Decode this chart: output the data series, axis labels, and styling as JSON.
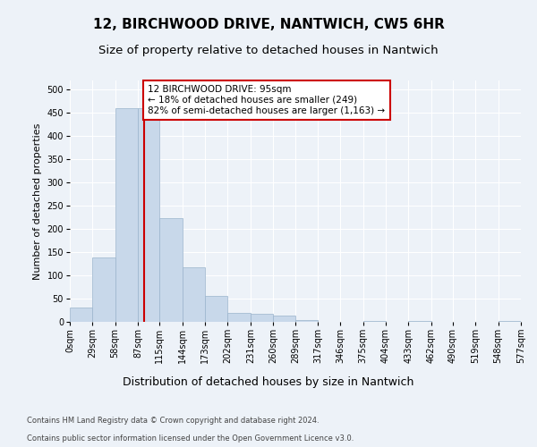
{
  "title": "12, BIRCHWOOD DRIVE, NANTWICH, CW5 6HR",
  "subtitle": "Size of property relative to detached houses in Nantwich",
  "xlabel": "Distribution of detached houses by size in Nantwich",
  "ylabel": "Number of detached properties",
  "footer_line1": "Contains HM Land Registry data © Crown copyright and database right 2024.",
  "footer_line2": "Contains public sector information licensed under the Open Government Licence v3.0.",
  "bin_edges": [
    0,
    29,
    58,
    87,
    115,
    144,
    173,
    202,
    231,
    260,
    289,
    317,
    346,
    375,
    404,
    433,
    462,
    490,
    519,
    548,
    577
  ],
  "bin_labels": [
    "0sqm",
    "29sqm",
    "58sqm",
    "87sqm",
    "115sqm",
    "144sqm",
    "173sqm",
    "202sqm",
    "231sqm",
    "260sqm",
    "289sqm",
    "317sqm",
    "346sqm",
    "375sqm",
    "404sqm",
    "433sqm",
    "462sqm",
    "490sqm",
    "519sqm",
    "548sqm",
    "577sqm"
  ],
  "bar_heights": [
    30,
    138,
    460,
    460,
    223,
    118,
    55,
    20,
    17,
    13,
    4,
    0,
    0,
    2,
    0,
    2,
    0,
    0,
    0,
    2
  ],
  "bar_color": "#c8d8ea",
  "bar_edge_color": "#9ab4cc",
  "property_size": 95,
  "property_line_x": 95,
  "vline_color": "#cc0000",
  "ylim": [
    0,
    520
  ],
  "yticks": [
    0,
    50,
    100,
    150,
    200,
    250,
    300,
    350,
    400,
    450,
    500
  ],
  "annotation_text": "12 BIRCHWOOD DRIVE: 95sqm\n← 18% of detached houses are smaller (249)\n82% of semi-detached houses are larger (1,163) →",
  "annotation_box_facecolor": "#ffffff",
  "annotation_box_edgecolor": "#cc0000",
  "bg_color": "#edf2f8",
  "plot_bg_color": "#edf2f8",
  "grid_color": "#ffffff",
  "title_fontsize": 11,
  "subtitle_fontsize": 9.5,
  "ylabel_fontsize": 8,
  "xlabel_fontsize": 9,
  "tick_fontsize": 7,
  "annot_fontsize": 7.5,
  "footer_fontsize": 6,
  "footer_color": "#444444"
}
